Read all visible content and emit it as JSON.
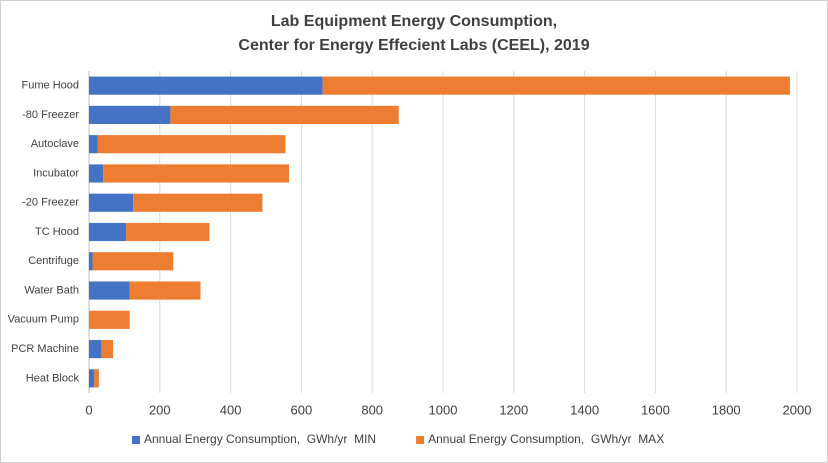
{
  "chart_data": {
    "type": "stacked_barh",
    "title": [
      "Lab Equipment Energy Consumption,",
      "Center for Energy Effecient Labs (CEEL), 2019"
    ],
    "categories": [
      "Fume Hood",
      "-80 Freezer",
      "Autoclave",
      "Incubator",
      "-20 Freezer",
      "TC Hood",
      "Centrifuge",
      "Water Bath",
      "Vacuum Pump",
      "PCR Machine",
      "Heat Block"
    ],
    "series": [
      {
        "name": "Annual Energy Consumption,  GWh/yr  MIN",
        "color": "#4472c4",
        "values": [
          660,
          230,
          25,
          40,
          125,
          105,
          10,
          115,
          0,
          35,
          15
        ]
      },
      {
        "name": "Annual Energy Consumption,  GWh/yr  MAX",
        "color": "#ed7d31",
        "values": [
          1320,
          645,
          530,
          525,
          365,
          235,
          228,
          200,
          115,
          33,
          13
        ]
      }
    ],
    "xlim": [
      0,
      2000
    ],
    "xticks": [
      0,
      200,
      400,
      600,
      800,
      1000,
      1200,
      1400,
      1600,
      1800,
      2000
    ],
    "grid": true,
    "legend": "bottom"
  }
}
